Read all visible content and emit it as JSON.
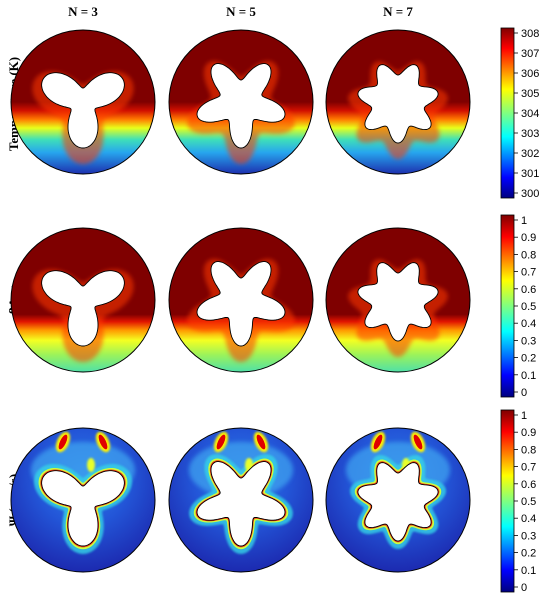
{
  "columns": [
    "N = 3",
    "N = 5",
    "N = 7"
  ],
  "rows": [
    {
      "label": "Temperature (K)",
      "colorbar": {
        "ticks": [
          "308",
          "307",
          "306",
          "305",
          "304",
          "303",
          "302",
          "301",
          "300"
        ],
        "min": 300,
        "max": 308
      }
    },
    {
      "label": "βAvg",
      "colorbar": {
        "ticks": [
          "1",
          "0.9",
          "0.8",
          "0.7",
          "0.6",
          "0.5",
          "0.4",
          "0.3",
          "0.2",
          "0.1",
          "0"
        ],
        "min": 0,
        "max": 1
      }
    },
    {
      "label": "Ψ (mm/s)",
      "colorbar": {
        "ticks": [
          "1",
          "0.9",
          "0.8",
          "0.7",
          "0.6",
          "0.5",
          "0.4",
          "0.3",
          "0.2",
          "0.1",
          "0"
        ],
        "min": 0,
        "max": 1
      }
    }
  ],
  "colors": {
    "dark_red": "#7f0000",
    "red": "#ff1a00",
    "orange": "#ff8c00",
    "yellow": "#ffff00",
    "cyan": "#27d3e0",
    "blue": "#1f4fd8",
    "dark_blue": "#1a2aa8"
  }
}
